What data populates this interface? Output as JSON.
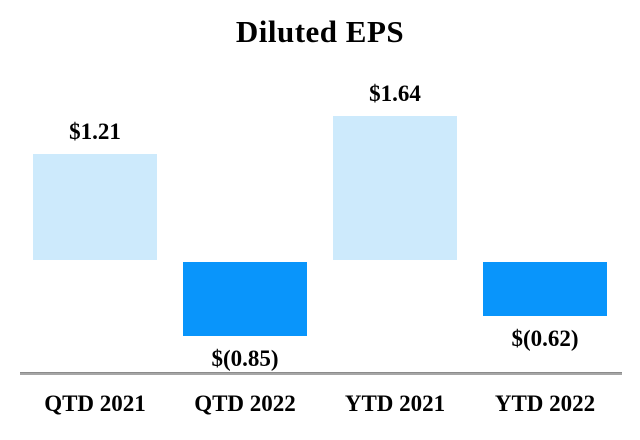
{
  "page": {
    "background_color": "#ffffff"
  },
  "chart_data": {
    "type": "bar",
    "title": "Diluted EPS",
    "categories": [
      "QTD 2021",
      "QTD 2022",
      "YTD 2021",
      "YTD 2022"
    ],
    "values": [
      1.21,
      -0.85,
      1.64,
      -0.62
    ],
    "value_labels": [
      "$1.21",
      "$(0.85)",
      "$1.64",
      "$(0.62)"
    ],
    "series": [
      {
        "name": "Diluted EPS",
        "values": [
          1.21,
          -0.85,
          1.64,
          -0.62
        ]
      }
    ],
    "xlabel": "",
    "ylabel": "",
    "ylim": [
      -1.0,
      1.9
    ],
    "grid": false,
    "legend": null,
    "colors": {
      "positive_fill": "#cdeafc",
      "negative_fill": "#0995fb",
      "axis_line": "#a6a6a6",
      "text": "#000000"
    },
    "annotations": "data labels above positive bars and below negative bars; no y-axis shown; horizontal axis line drawn below negative labels"
  }
}
